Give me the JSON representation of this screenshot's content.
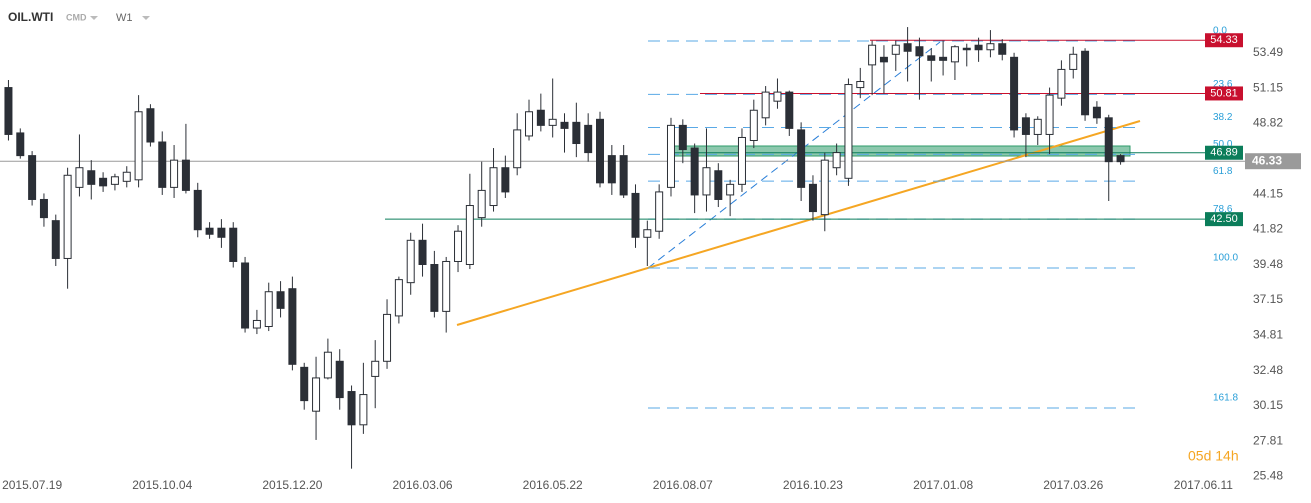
{
  "header": {
    "symbol": "OIL.WTI",
    "group": "CMD",
    "interval": "W1"
  },
  "timer": "05d 14h",
  "chart_data": {
    "type": "candlestick",
    "x": [
      "2015.07.05",
      "2015.07.12",
      "2015.07.19",
      "2015.07.26",
      "2015.08.02",
      "2015.08.09",
      "2015.08.16",
      "2015.08.23",
      "2015.08.30",
      "2015.09.06",
      "2015.09.13",
      "2015.09.20",
      "2015.09.27",
      "2015.10.04",
      "2015.10.11",
      "2015.10.18",
      "2015.10.25",
      "2015.11.01",
      "2015.11.08",
      "2015.11.15",
      "2015.11.22",
      "2015.11.29",
      "2015.12.06",
      "2015.12.13",
      "2015.12.20",
      "2015.12.27",
      "2016.01.03",
      "2016.01.10",
      "2016.01.17",
      "2016.01.24",
      "2016.01.31",
      "2016.02.07",
      "2016.02.14",
      "2016.02.21",
      "2016.02.28",
      "2016.03.06",
      "2016.03.13",
      "2016.03.20",
      "2016.03.27",
      "2016.04.03",
      "2016.04.10",
      "2016.04.17",
      "2016.04.24",
      "2016.05.01",
      "2016.05.08",
      "2016.05.15",
      "2016.05.22",
      "2016.05.29",
      "2016.06.05",
      "2016.06.12",
      "2016.06.19",
      "2016.06.26",
      "2016.07.03",
      "2016.07.10",
      "2016.07.17",
      "2016.07.24",
      "2016.07.31",
      "2016.08.07",
      "2016.08.14",
      "2016.08.21",
      "2016.08.28",
      "2016.09.04",
      "2016.09.11",
      "2016.09.18",
      "2016.09.25",
      "2016.10.02",
      "2016.10.09",
      "2016.10.16",
      "2016.10.23",
      "2016.10.30",
      "2016.11.06",
      "2016.11.13",
      "2016.11.20",
      "2016.11.27",
      "2016.12.04",
      "2016.12.11",
      "2016.12.18",
      "2016.12.25",
      "2017.01.01",
      "2017.01.08",
      "2017.01.15",
      "2017.01.22",
      "2017.01.29",
      "2017.02.05",
      "2017.02.12",
      "2017.02.19",
      "2017.02.26",
      "2017.03.05",
      "2017.03.12",
      "2017.03.19",
      "2017.03.26",
      "2017.04.02",
      "2017.04.09",
      "2017.04.16",
      "2017.04.23"
    ],
    "series": [
      {
        "up_color": "#ffffff",
        "down_color": "#2b2f36",
        "edge_color": "#2b2f36",
        "open": [
          51.2,
          48.2,
          46.7,
          43.8,
          42.4,
          39.9,
          44.6,
          45.7,
          45.2,
          44.8,
          45.0,
          45.1,
          49.8,
          47.6,
          44.6,
          46.4,
          44.4,
          41.9,
          41.9,
          41.9,
          39.6,
          35.3,
          35.4,
          37.7,
          37.9,
          32.7,
          29.8,
          32.0,
          33.1,
          31.1,
          28.9,
          32.1,
          33.1,
          36.1,
          38.3,
          41.1,
          39.5,
          36.4,
          39.7,
          39.5,
          42.6,
          43.4,
          45.9,
          45.9,
          48.0,
          49.7,
          48.7,
          48.9,
          48.9,
          48.7,
          49.1,
          46.7,
          46.7,
          44.2,
          41.3,
          41.7,
          44.6,
          48.7,
          47.2,
          44.1,
          45.7,
          44.1,
          44.8,
          47.7,
          49.2,
          50.3,
          50.9,
          48.4,
          44.8,
          42.8,
          45.9,
          45.2,
          51.2,
          52.7,
          53.2,
          53.4,
          54.1,
          53.9,
          53.3,
          53.2,
          52.9,
          53.8,
          54.0,
          53.7,
          54.1,
          53.2,
          49.2,
          48.1,
          48.1,
          50.5,
          52.4,
          53.6,
          49.9,
          49.2,
          46.7
        ],
        "high": [
          51.7,
          48.5,
          47.0,
          44.2,
          42.8,
          45.9,
          48.1,
          46.4,
          45.6,
          45.5,
          46.0,
          50.7,
          50.1,
          48.3,
          47.4,
          48.8,
          44.9,
          42.3,
          42.5,
          42.3,
          40.0,
          36.5,
          38.3,
          38.4,
          38.7,
          33.0,
          33.4,
          34.6,
          33.9,
          31.5,
          33.0,
          34.5,
          37.2,
          38.7,
          41.6,
          42.2,
          40.4,
          40.0,
          42.1,
          45.5,
          46.3,
          47.2,
          46.7,
          49.5,
          50.4,
          50.8,
          51.8,
          49.5,
          50.2,
          49.5,
          49.6,
          47.4,
          47.4,
          44.8,
          42.4,
          44.8,
          49.2,
          49.1,
          47.5,
          48.5,
          46.2,
          45.1,
          48.5,
          50.4,
          51.3,
          51.8,
          51.0,
          48.9,
          45.4,
          46.9,
          47.5,
          51.8,
          52.5,
          54.3,
          54.0,
          54.3,
          55.2,
          54.5,
          53.8,
          54.3,
          54.0,
          54.1,
          54.5,
          55.0,
          54.4,
          53.5,
          49.5,
          49.3,
          51.2,
          53.0,
          53.9,
          53.8,
          50.3,
          49.4,
          46.8
        ],
        "low": [
          47.7,
          46.5,
          43.4,
          42.0,
          39.4,
          37.9,
          44.0,
          43.8,
          44.3,
          44.4,
          44.6,
          44.6,
          47.3,
          44.1,
          43.9,
          44.2,
          41.3,
          41.2,
          40.6,
          39.3,
          35.0,
          34.9,
          35.1,
          36.0,
          32.5,
          29.9,
          27.9,
          31.9,
          29.9,
          26.0,
          28.3,
          30.0,
          32.6,
          35.6,
          37.5,
          38.7,
          36.0,
          35.0,
          39.0,
          39.2,
          42.0,
          43.0,
          43.9,
          45.4,
          47.7,
          48.3,
          47.9,
          46.9,
          46.6,
          46.3,
          44.6,
          44.1,
          43.9,
          40.6,
          39.4,
          41.2,
          44.0,
          46.2,
          42.9,
          43.0,
          43.3,
          42.7,
          44.3,
          47.2,
          48.7,
          49.8,
          48.0,
          43.7,
          42.4,
          41.7,
          45.4,
          44.7,
          50.5,
          50.7,
          50.8,
          52.3,
          51.6,
          50.4,
          51.6,
          52.0,
          51.7,
          52.6,
          52.9,
          53.2,
          53.0,
          47.9,
          46.6,
          47.4,
          46.8,
          50.0,
          51.8,
          49.0,
          48.8,
          43.7,
          46.1
        ],
        "close": [
          48.1,
          46.7,
          43.8,
          42.6,
          39.9,
          45.4,
          45.9,
          44.8,
          44.7,
          45.3,
          45.6,
          49.6,
          47.6,
          44.6,
          46.4,
          44.4,
          41.8,
          41.5,
          41.3,
          39.7,
          35.3,
          35.8,
          37.7,
          36.6,
          32.9,
          30.5,
          32.0,
          33.7,
          30.7,
          28.9,
          30.9,
          33.1,
          36.2,
          38.5,
          41.1,
          39.5,
          36.4,
          39.7,
          41.7,
          43.4,
          44.4,
          45.9,
          44.3,
          48.4,
          49.6,
          48.7,
          49.1,
          48.5,
          47.5,
          46.9,
          44.9,
          44.9,
          44.1,
          41.3,
          41.8,
          44.3,
          48.7,
          47.1,
          44.1,
          45.9,
          43.8,
          44.8,
          47.9,
          49.7,
          50.9,
          50.9,
          48.5,
          44.6,
          43.0,
          46.4,
          46.9,
          51.4,
          51.6,
          54.0,
          52.9,
          54.0,
          53.6,
          53.3,
          53.0,
          53.0,
          53.9,
          53.7,
          53.7,
          54.1,
          53.4,
          48.4,
          48.1,
          49.1,
          50.7,
          52.4,
          53.4,
          49.4,
          49.2,
          46.3,
          46.3
        ]
      }
    ],
    "xlim": [
      "2015.06.30",
      "2017.06.09"
    ],
    "xticks": [
      "2015.07.19",
      "2015.10.04",
      "2015.12.20",
      "2016.03.06",
      "2016.05.22",
      "2016.08.07",
      "2016.10.23",
      "2017.01.08",
      "2017.03.26",
      "2017.06.11"
    ],
    "ylim": [
      24.92,
      56.99
    ],
    "yticks": [
      53.49,
      51.15,
      48.82,
      46.48,
      44.15,
      41.82,
      39.48,
      37.15,
      34.81,
      32.48,
      30.15,
      27.81,
      25.48
    ],
    "levels": [
      {
        "value": 54.33,
        "label": "54.33",
        "color": "#c8102e"
      },
      {
        "value": 50.81,
        "label": "50.81",
        "color": "#c8102e"
      },
      {
        "value": 46.89,
        "label": "46.89",
        "color": "#0b7d5a"
      },
      {
        "value": 42.5,
        "label": "42.50",
        "color": "#0b7d5a"
      }
    ],
    "current_price": {
      "value": 46.33,
      "label": "46.33",
      "color": "#9a9a9a"
    },
    "fib_levels": {
      "labels": [
        "0.0",
        "23.6",
        "38.2",
        "50.0",
        "61.8",
        "78.6",
        "100.0",
        "161.8"
      ],
      "prices": [
        54.28,
        50.75,
        48.56,
        46.78,
        45.01,
        42.5,
        39.27,
        30.01
      ]
    }
  }
}
